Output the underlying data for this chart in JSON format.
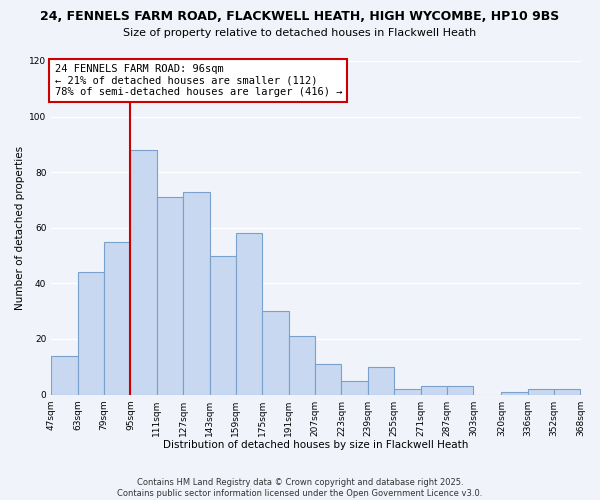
{
  "title_line1": "24, FENNELS FARM ROAD, FLACKWELL HEATH, HIGH WYCOMBE, HP10 9BS",
  "title_line2": "Size of property relative to detached houses in Flackwell Heath",
  "xlabel": "Distribution of detached houses by size in Flackwell Heath",
  "ylabel": "Number of detached properties",
  "bins": [
    47,
    63,
    79,
    95,
    111,
    127,
    143,
    159,
    175,
    191,
    207,
    223,
    239,
    255,
    271,
    287,
    303,
    320,
    336,
    352,
    368
  ],
  "counts": [
    14,
    44,
    55,
    88,
    71,
    73,
    50,
    58,
    30,
    21,
    11,
    5,
    10,
    2,
    3,
    3,
    0,
    1,
    2,
    2
  ],
  "bar_color": "#c8d8f0",
  "bar_edge_color": "#7aa0cc",
  "vline_x": 95,
  "vline_color": "#cc0000",
  "annotation_title": "24 FENNELS FARM ROAD: 96sqm",
  "annotation_line2": "← 21% of detached houses are smaller (112)",
  "annotation_line3": "78% of semi-detached houses are larger (416) →",
  "annotation_box_color": "#ffffff",
  "annotation_box_edge": "#cc0000",
  "ylim": [
    0,
    120
  ],
  "yticks": [
    0,
    20,
    40,
    60,
    80,
    100,
    120
  ],
  "tick_labels": [
    "47sqm",
    "63sqm",
    "79sqm",
    "95sqm",
    "111sqm",
    "127sqm",
    "143sqm",
    "159sqm",
    "175sqm",
    "191sqm",
    "207sqm",
    "223sqm",
    "239sqm",
    "255sqm",
    "271sqm",
    "287sqm",
    "303sqm",
    "320sqm",
    "336sqm",
    "352sqm",
    "368sqm"
  ],
  "footnote1": "Contains HM Land Registry data © Crown copyright and database right 2025.",
  "footnote2": "Contains public sector information licensed under the Open Government Licence v3.0.",
  "background_color": "#f0f4fa",
  "grid_color": "#ffffff",
  "title1_fontsize": 9,
  "title2_fontsize": 8,
  "annotation_fontsize": 7.5,
  "axis_fontsize": 7.5,
  "tick_fontsize": 6.5,
  "footnote_fontsize": 6
}
